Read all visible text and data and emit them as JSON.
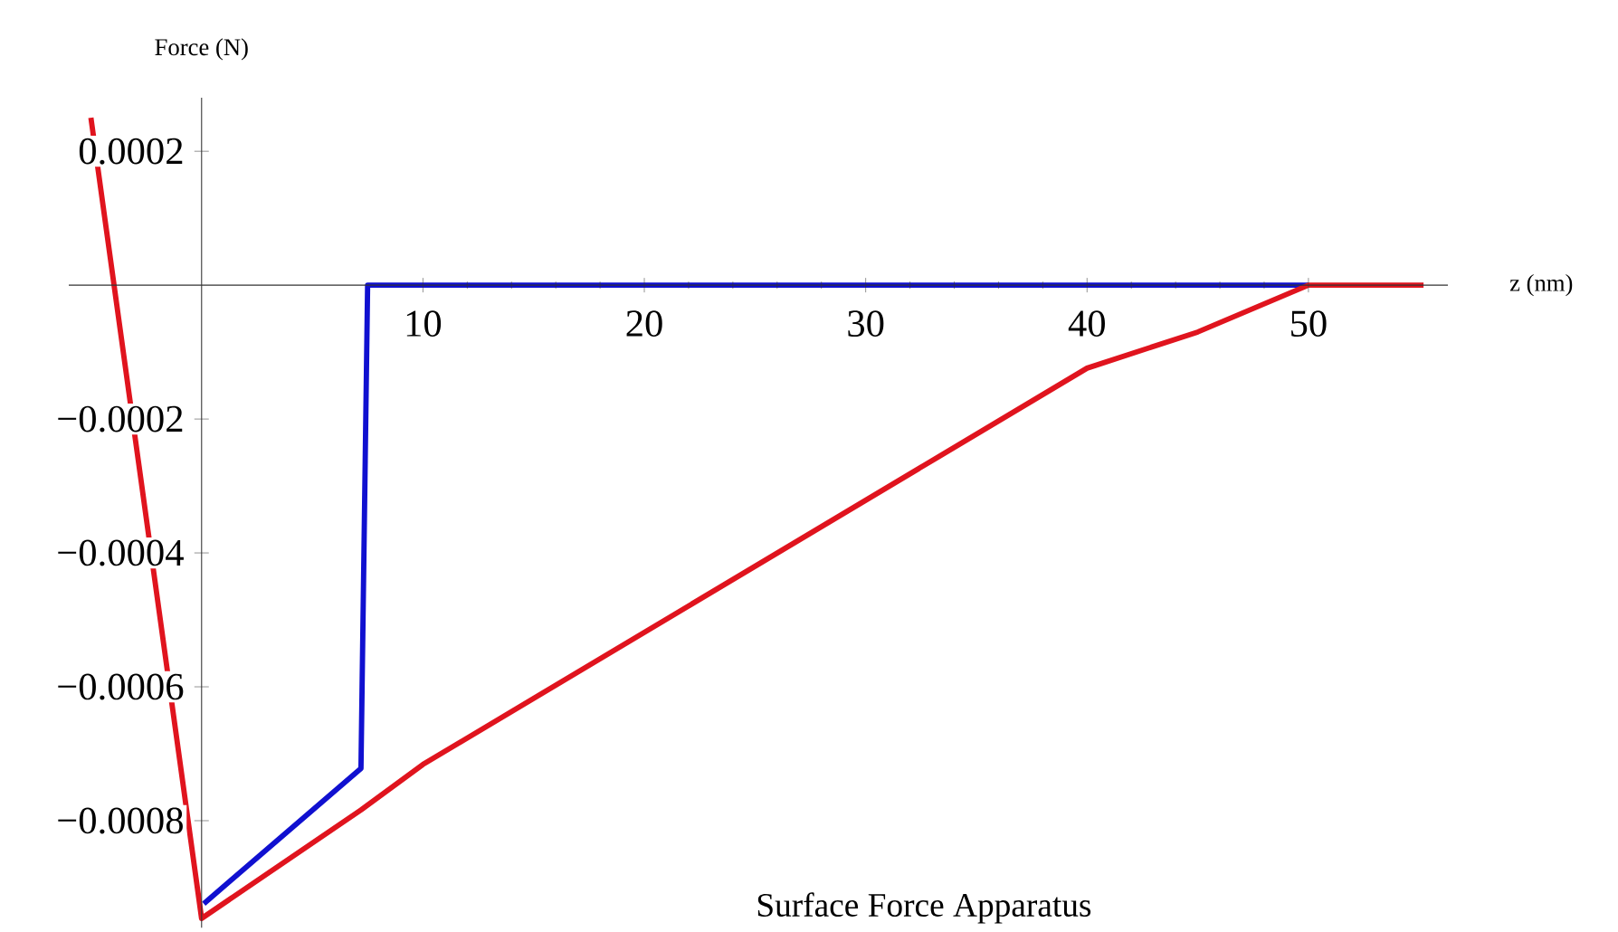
{
  "chart_data": {
    "type": "line",
    "title": "Surface Force Apparatus",
    "xlabel": "z (nm)",
    "ylabel": "Force (N)",
    "xlim": [
      -6,
      56.3
    ],
    "ylim": [
      -0.00096,
      0.00028
    ],
    "xticks": [
      10,
      20,
      30,
      40,
      50
    ],
    "yticks": [
      {
        "value": 0.0002,
        "label": "0.0002"
      },
      {
        "value": -0.0002,
        "label": "−0.0002"
      },
      {
        "value": -0.0004,
        "label": "−0.0004"
      },
      {
        "value": -0.0006,
        "label": "−0.0006"
      },
      {
        "value": -0.0008,
        "label": "−0.0008"
      }
    ],
    "series": [
      {
        "color": "#1010d0",
        "x": [
          0.1,
          7.2,
          7.5,
          50
        ],
        "values": [
          -0.000924,
          -0.000722,
          0,
          0
        ]
      },
      {
        "color": "#e0141e",
        "x": [
          -5,
          0,
          7.2,
          10,
          40,
          45,
          50,
          55.2
        ],
        "values": [
          0.00025,
          -0.000946,
          -0.000784,
          -0.000716,
          -0.000124,
          -7e-05,
          0,
          0
        ]
      }
    ],
    "grid": false,
    "marker": "none",
    "line_style": "solid"
  }
}
